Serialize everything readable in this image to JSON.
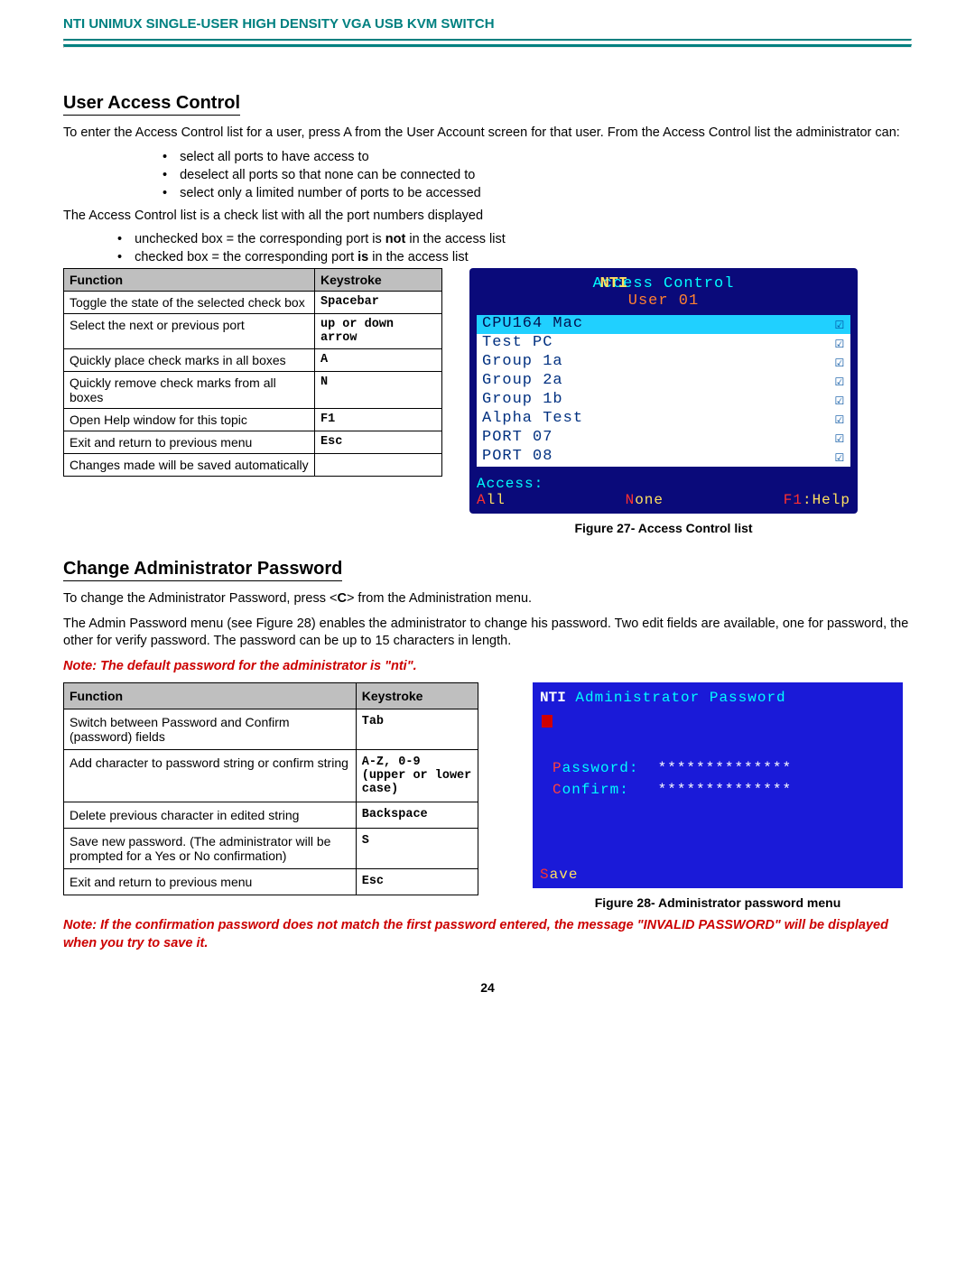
{
  "header": "NTI UNIMUX SINGLE-USER HIGH DENSITY VGA USB KVM SWITCH",
  "section1": {
    "title": "User Access Control",
    "p1": "To enter the Access Control list for a user, press A from the User Account screen for that user.  From the Access Control list the administrator can:",
    "bullets": [
      "select all ports to have access to",
      "deselect all ports so that none can be connected to",
      "select only a limited number of ports to be accessed"
    ],
    "p2": "The Access Control list is a check list with all the port numbers displayed",
    "bullets2": [
      {
        "pre": "unchecked box =  the corresponding port is ",
        "bold": "not",
        "post": " in the access list"
      },
      {
        "pre": "checked box     =  the corresponding port ",
        "bold": "is",
        "post": " in the access list"
      }
    ],
    "table": {
      "h1": "Function",
      "h2": "Keystroke",
      "rows": [
        {
          "f": "Toggle the state of the selected check box",
          "k": "Spacebar"
        },
        {
          "f": "Select the next or previous port",
          "k": "up or down arrow"
        },
        {
          "f": "Quickly place check marks in all boxes",
          "k": "A"
        },
        {
          "f": "Quickly remove check marks from all boxes",
          "k": "N"
        },
        {
          "f": "Open Help window for this topic",
          "k": "F1"
        },
        {
          "f": "Exit and return to previous menu",
          "k": "Esc"
        },
        {
          "f": "Changes made will be saved automatically",
          "k": ""
        }
      ]
    },
    "figcap": "Figure 27- Access Control list"
  },
  "screen1": {
    "nti": "NTI",
    "t1": "Access Control",
    "t2": "User 01",
    "rows": [
      "CPU164 Mac",
      "Test PC",
      "Group 1a",
      "Group 2a",
      "Group 1b",
      "Alpha Test",
      "PORT 07",
      "PORT 08"
    ],
    "access": "Access:",
    "all_h": "A",
    "all_r": "ll",
    "none_h": "N",
    "none_r": "one",
    "help_h": "F1",
    "help_r": ":Help"
  },
  "section2": {
    "title": "Change Administrator Password",
    "p1_a": "To change the Administrator Password, press <",
    "p1_b": "C",
    "p1_c": "> from the Administration menu.",
    "p2": "The Admin Password menu (see Figure 28) enables the administrator to change his password.  Two edit fields are available, one for password, the other for verify password.    The password can be up to 15 characters in length.",
    "note": "Note:  The default password for the administrator is \"nti\".",
    "table": {
      "h1": "Function",
      "h2": "Keystroke",
      "rows": [
        {
          "f": "Switch between Password and Confirm (password) fields",
          "k": "Tab"
        },
        {
          "f": "Add character to password string or confirm string",
          "k": "A-Z, 0-9\n(upper or lower case)"
        },
        {
          "f": "Delete previous character in edited string",
          "k": "Backspace"
        },
        {
          "f": "Save new password.  (The administrator will be prompted for a Yes or No confirmation)",
          "k": "S"
        },
        {
          "f": "Exit and return to previous menu",
          "k": "Esc"
        }
      ]
    },
    "figcap": "Figure 28- Administrator password menu",
    "note2": "Note: If the confirmation password does not match the first password entered, the message \"INVALID PASSWORD\" will be displayed when you try to save it."
  },
  "screen2": {
    "nti": "NTI",
    "title": "Administrator Password",
    "pwlab_h": "P",
    "pwlab_r": "assword:",
    "cflab_h": "C",
    "cflab_r": "onfirm:",
    "stars": "**************",
    "save_h": "S",
    "save_r": "ave"
  },
  "pageno": "24"
}
